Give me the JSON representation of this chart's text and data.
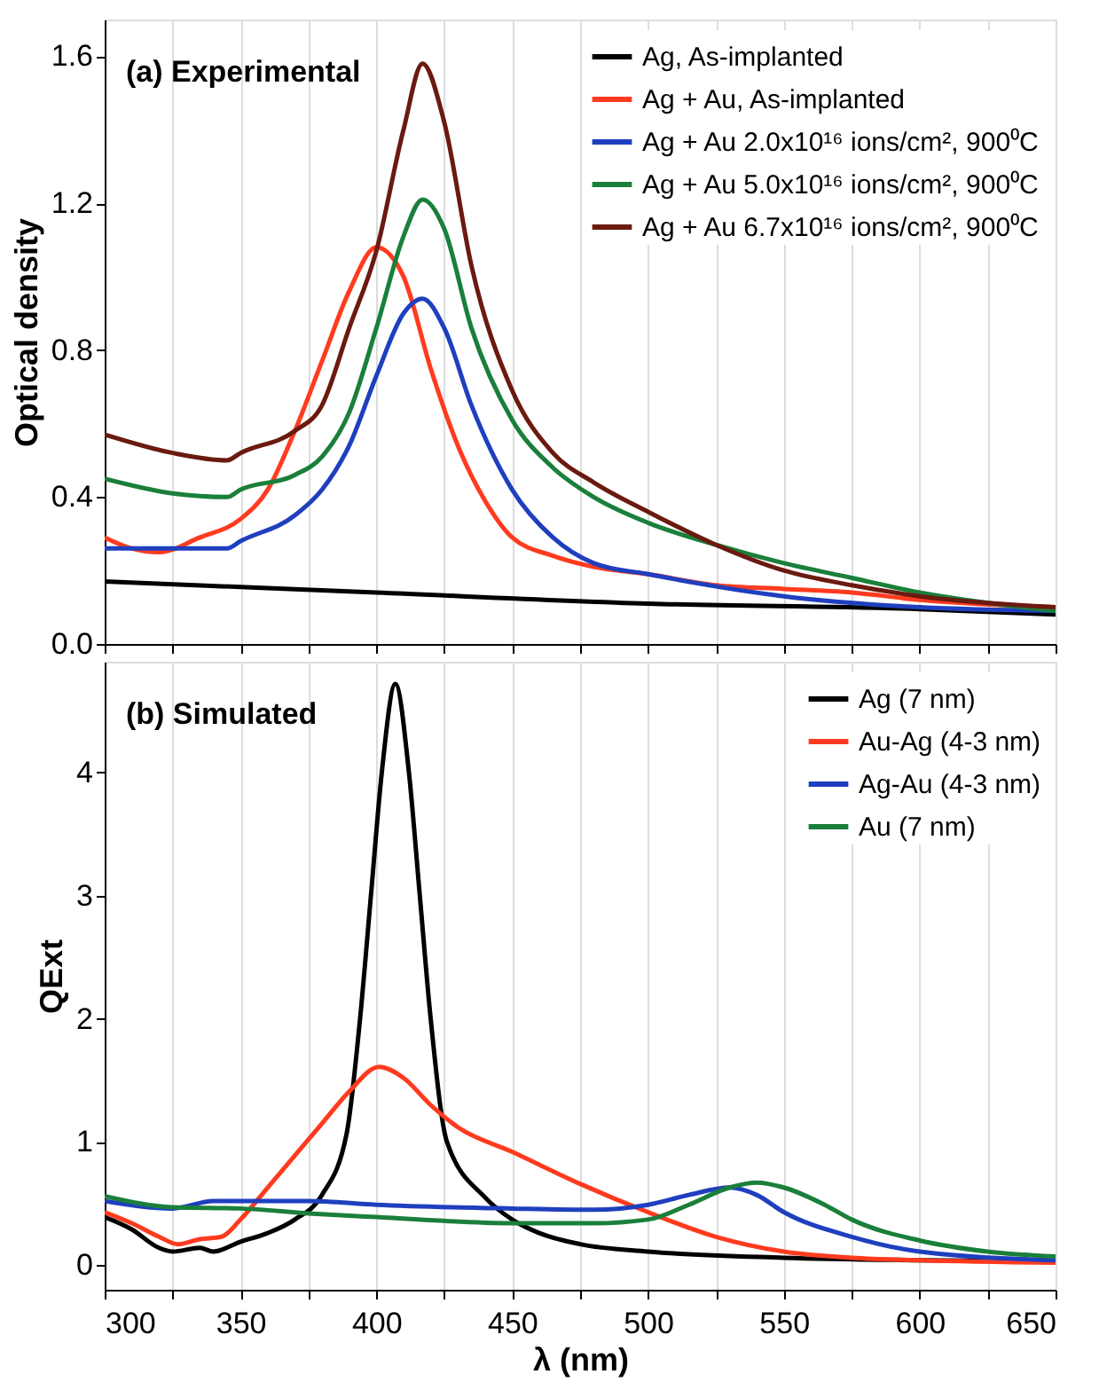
{
  "chart_data": [
    {
      "type": "line",
      "title": "(a) Experimental",
      "ylabel": "Optical density",
      "xlim": [
        300,
        650
      ],
      "ylim": [
        0,
        1.7
      ],
      "xticks": [
        300,
        {
          "value": 325,
          "label": null
        },
        350,
        {
          "value": 375,
          "label": null
        },
        400,
        {
          "value": 425,
          "label": null
        },
        450,
        {
          "value": 475,
          "label": null
        },
        500,
        {
          "value": 525,
          "label": null
        },
        550,
        {
          "value": 575,
          "label": null
        },
        600,
        {
          "value": 625,
          "label": null
        },
        650
      ],
      "yticks": [
        {
          "value": 0,
          "label": "0.0"
        },
        0.4,
        0.8,
        1.2,
        1.6
      ],
      "grid": "x",
      "legend": "top right",
      "tick_labels": "y",
      "line_style": "solid",
      "marker": "none",
      "series": [
        {
          "name": "Ag, As-implanted",
          "color": "#000000",
          "x": [
            300,
            400,
            500,
            600,
            650
          ],
          "values": [
            0.17,
            0.14,
            0.11,
            0.095,
            0.08
          ]
        },
        {
          "name": "Ag + Au, As-implanted",
          "color": "#ff3b1f",
          "x": [
            300,
            310,
            320,
            335,
            350,
            360,
            370,
            380,
            390,
            400,
            410,
            420,
            430,
            440,
            450,
            465,
            480,
            500,
            525,
            550,
            575,
            600,
            650
          ],
          "values": [
            0.29,
            0.26,
            0.25,
            0.29,
            0.34,
            0.42,
            0.58,
            0.77,
            0.96,
            1.08,
            1.0,
            0.75,
            0.54,
            0.39,
            0.29,
            0.24,
            0.21,
            0.19,
            0.16,
            0.15,
            0.14,
            0.12,
            0.1
          ]
        },
        {
          "name": "Ag + Au 2.0x10¹⁶ ions/cm², 900⁰C",
          "color": "#1f3fbf",
          "x": [
            300,
            345,
            350,
            370,
            380,
            390,
            400,
            410,
            417,
            425,
            435,
            450,
            465,
            480,
            500,
            550,
            600,
            650
          ],
          "values": [
            0.26,
            0.26,
            0.28,
            0.35,
            0.42,
            0.54,
            0.73,
            0.9,
            0.94,
            0.86,
            0.65,
            0.42,
            0.29,
            0.22,
            0.19,
            0.13,
            0.1,
            0.09
          ]
        },
        {
          "name": "Ag + Au 5.0x10¹⁶ ions/cm², 900⁰C",
          "color": "#1a7f3a",
          "x": [
            300,
            325,
            345,
            350,
            370,
            380,
            390,
            400,
            410,
            417,
            425,
            435,
            450,
            465,
            480,
            500,
            525,
            550,
            575,
            600,
            650
          ],
          "values": [
            0.45,
            0.41,
            0.4,
            0.42,
            0.46,
            0.51,
            0.63,
            0.86,
            1.11,
            1.21,
            1.13,
            0.86,
            0.61,
            0.48,
            0.4,
            0.33,
            0.27,
            0.22,
            0.18,
            0.14,
            0.09
          ]
        },
        {
          "name": "Ag + Au 6.7x10¹⁶ ions/cm², 900⁰C",
          "color": "#6b1a10",
          "x": [
            300,
            325,
            345,
            350,
            370,
            380,
            390,
            400,
            410,
            417,
            425,
            435,
            450,
            465,
            480,
            500,
            525,
            550,
            575,
            600,
            650
          ],
          "values": [
            0.57,
            0.52,
            0.5,
            0.52,
            0.58,
            0.65,
            0.86,
            1.07,
            1.4,
            1.58,
            1.42,
            1.03,
            0.69,
            0.52,
            0.44,
            0.36,
            0.27,
            0.2,
            0.16,
            0.13,
            0.1
          ]
        }
      ]
    },
    {
      "type": "line",
      "title": "(b) Simulated",
      "xlabel": "λ (nm)",
      "ylabel": "QExt",
      "xlim": [
        300,
        650
      ],
      "ylim": [
        -0.2,
        4.9
      ],
      "xticks": [
        300,
        {
          "value": 325,
          "label": null
        },
        350,
        {
          "value": 375,
          "label": null
        },
        400,
        {
          "value": 425,
          "label": null
        },
        450,
        {
          "value": 475,
          "label": null
        },
        500,
        {
          "value": 525,
          "label": null
        },
        550,
        {
          "value": 575,
          "label": null
        },
        600,
        {
          "value": 625,
          "label": null
        },
        650
      ],
      "yticks": [
        0,
        1,
        2,
        3,
        4
      ],
      "grid": "x",
      "legend": "top right",
      "line_style": "solid",
      "marker": "none",
      "series": [
        {
          "name": "Ag (7 nm)",
          "color": "#000000",
          "x": [
            300,
            310,
            320,
            325,
            335,
            340,
            350,
            360,
            370,
            380,
            389,
            394,
            398,
            402,
            407,
            412,
            416,
            420,
            426,
            440,
            450,
            460,
            475,
            500,
            550,
            600,
            650
          ],
          "values": [
            0.39,
            0.29,
            0.14,
            0.11,
            0.14,
            0.11,
            0.19,
            0.26,
            0.37,
            0.57,
            1.06,
            2,
            3,
            4,
            4.72,
            4,
            3,
            2,
            1,
            0.55,
            0.37,
            0.26,
            0.17,
            0.11,
            0.06,
            0.04,
            0.03
          ]
        },
        {
          "name": "Au-Ag (4-3 nm)",
          "color": "#ff3b1f",
          "x": [
            300,
            310,
            320,
            327,
            335,
            343,
            350,
            360,
            370,
            380,
            390,
            401,
            410,
            420,
            430,
            450,
            475,
            500,
            525,
            550,
            575,
            600,
            650
          ],
          "values": [
            0.43,
            0.34,
            0.23,
            0.17,
            0.21,
            0.23,
            0.37,
            0.63,
            0.89,
            1.15,
            1.41,
            1.61,
            1.52,
            1.3,
            1.12,
            0.92,
            0.66,
            0.43,
            0.23,
            0.11,
            0.06,
            0.04,
            0.02
          ]
        },
        {
          "name": "Ag-Au (4-3 nm)",
          "color": "#1f3fbf",
          "x": [
            300,
            325,
            340,
            375,
            400,
            450,
            480,
            500,
            515,
            530,
            540,
            550,
            575,
            600,
            650
          ],
          "values": [
            0.52,
            0.46,
            0.52,
            0.52,
            0.49,
            0.46,
            0.45,
            0.49,
            0.57,
            0.63,
            0.57,
            0.43,
            0.23,
            0.11,
            0.04
          ]
        },
        {
          "name": "Au (7 nm)",
          "color": "#1a7f3a",
          "x": [
            300,
            325,
            350,
            375,
            400,
            450,
            480,
            500,
            515,
            530,
            540,
            550,
            565,
            575,
            600,
            625,
            650
          ],
          "values": [
            0.56,
            0.47,
            0.46,
            0.42,
            0.39,
            0.34,
            0.34,
            0.37,
            0.49,
            0.63,
            0.67,
            0.63,
            0.49,
            0.37,
            0.2,
            0.11,
            0.07
          ]
        }
      ]
    }
  ]
}
